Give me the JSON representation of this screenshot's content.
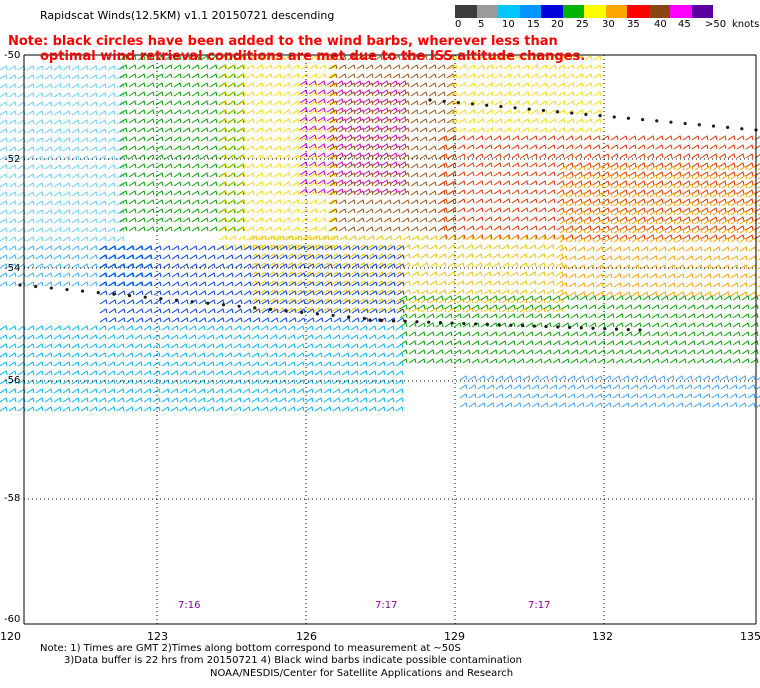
{
  "header": {
    "title": "Rapidscat Winds(12.5KM) v1.1 20150721 descending",
    "note_line1": "Note: black circles have been added to the wind barbs, wherever less than",
    "note_line2": "optimal wind retrieval conditions are met due to the ISS altitude changes."
  },
  "legend": {
    "ticks": [
      "0",
      "5",
      "10",
      "15",
      "20",
      "25",
      "30",
      "35",
      "40",
      "45",
      ">50",
      "knots"
    ],
    "colors": [
      "#3c3c3c",
      "#9a9a9a",
      "#00c8ff",
      "#0096ff",
      "#0000dc",
      "#00b400",
      "#ffff00",
      "#ffa500",
      "#ff0000",
      "#8b4513",
      "#ff00ff",
      "#5a00a0"
    ]
  },
  "axes": {
    "lat_labels": [
      "-50",
      "-52",
      "-54",
      "-56",
      "-58",
      "-60"
    ],
    "lon_labels": [
      "120",
      "123",
      "126",
      "129",
      "132",
      "135"
    ]
  },
  "pass_times": [
    "7:16",
    "7:17",
    "7:17"
  ],
  "footer": {
    "line1": "Note: 1) Times are GMT 2)Times along bottom correspond to measurement at ~50S",
    "line2": "3)Data buffer is 22 hrs from 20150721 4) Black wind barbs indicate possible contamination",
    "credit": "NOAA/NESDIS/Center for Satellite Applications and Research"
  },
  "colors": {
    "note_text": "#ff0000",
    "time_text": "#8a0098",
    "grid": "#000000"
  }
}
